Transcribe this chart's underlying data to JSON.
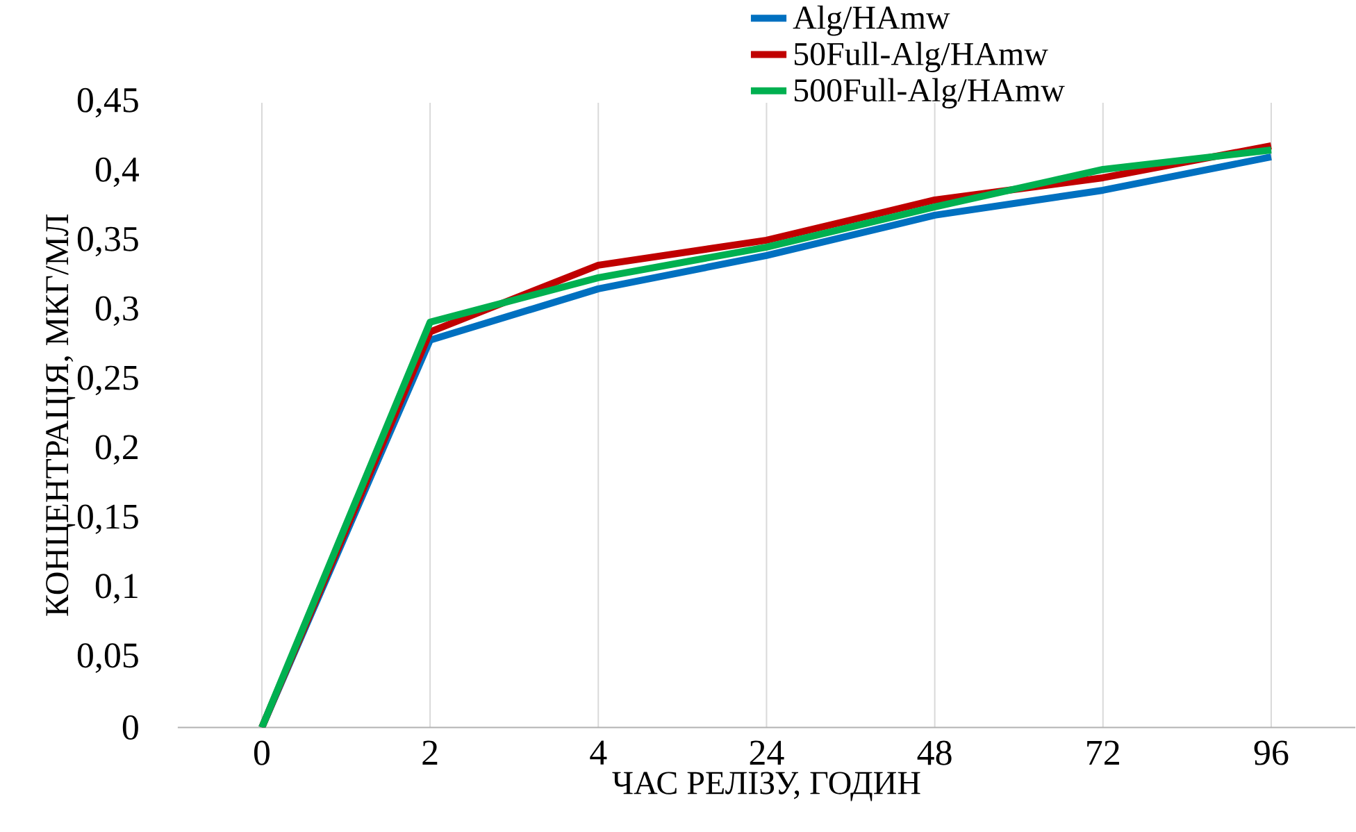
{
  "chart_data": {
    "type": "line",
    "xlabel": "ЧАС РЕЛІЗУ, ГОДИН",
    "ylabel": "КОНЦЕНТРАЦІЯ, МКГ/МЛ",
    "categories": [
      "0",
      "2",
      "4",
      "24",
      "48",
      "72",
      "96"
    ],
    "series": [
      {
        "name": "Alg/HAmw",
        "color": "#0070c0",
        "values": [
          0,
          0.279,
          0.316,
          0.34,
          0.369,
          0.387,
          0.411
        ]
      },
      {
        "name": "50Full-Alg/HAmw",
        "color": "#c00000",
        "values": [
          0,
          0.285,
          0.333,
          0.351,
          0.38,
          0.396,
          0.419
        ]
      },
      {
        "name": "500Full-Alg/HAmw",
        "color": "#00b050",
        "values": [
          0,
          0.292,
          0.324,
          0.346,
          0.375,
          0.402,
          0.416
        ]
      }
    ],
    "ylim": [
      0,
      0.45
    ],
    "yticks": [
      {
        "value": 0,
        "label": "0"
      },
      {
        "value": 0.05,
        "label": "0,05"
      },
      {
        "value": 0.1,
        "label": "0,1"
      },
      {
        "value": 0.15,
        "label": "0,15"
      },
      {
        "value": 0.2,
        "label": "0,2"
      },
      {
        "value": 0.25,
        "label": "0,25"
      },
      {
        "value": 0.3,
        "label": "0,3"
      },
      {
        "value": 0.35,
        "label": "0,35"
      },
      {
        "value": 0.4,
        "label": "0,4"
      },
      {
        "value": 0.45,
        "label": "0,45"
      }
    ],
    "grid": "x",
    "legend": "top right",
    "marker": "none",
    "line_style": "solid"
  }
}
